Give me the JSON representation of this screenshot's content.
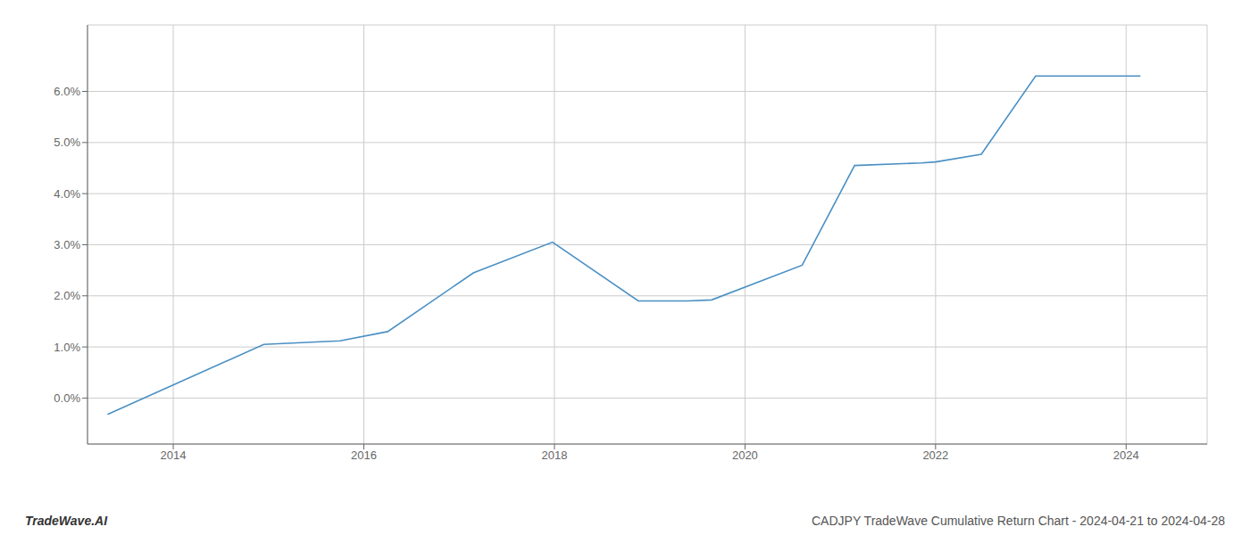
{
  "chart_data": {
    "type": "line",
    "x": [
      2013.31,
      2014.95,
      2015.75,
      2016.25,
      2017.15,
      2017.98,
      2018.88,
      2019.4,
      2019.65,
      2020.6,
      2021.15,
      2021.85,
      2022.0,
      2022.48,
      2023.05,
      2024.15
    ],
    "values": [
      -0.0032,
      0.0105,
      0.0112,
      0.013,
      0.0245,
      0.0305,
      0.019,
      0.019,
      0.0192,
      0.026,
      0.0455,
      0.046,
      0.0462,
      0.0477,
      0.063,
      0.063
    ],
    "color": "#4a90c4",
    "xlim": [
      2013.1,
      2024.85
    ],
    "ylim": [
      -0.009,
      0.073
    ],
    "xticks": [
      2014,
      2016,
      2018,
      2020,
      2022,
      2024
    ],
    "yticks": [
      {
        "value": 0.0,
        "label": "0.0%"
      },
      {
        "value": 0.01,
        "label": "1.0%"
      },
      {
        "value": 0.02,
        "label": "2.0%"
      },
      {
        "value": 0.03,
        "label": "3.0%"
      },
      {
        "value": 0.04,
        "label": "4.0%"
      },
      {
        "value": 0.05,
        "label": "5.0%"
      },
      {
        "value": 0.06,
        "label": "6.0%"
      }
    ],
    "grid": true,
    "annotations": [
      "TradeWave.AI",
      "CADJPY TradeWave Cumulative Return Chart - 2024-04-21 to 2024-04-28"
    ]
  }
}
